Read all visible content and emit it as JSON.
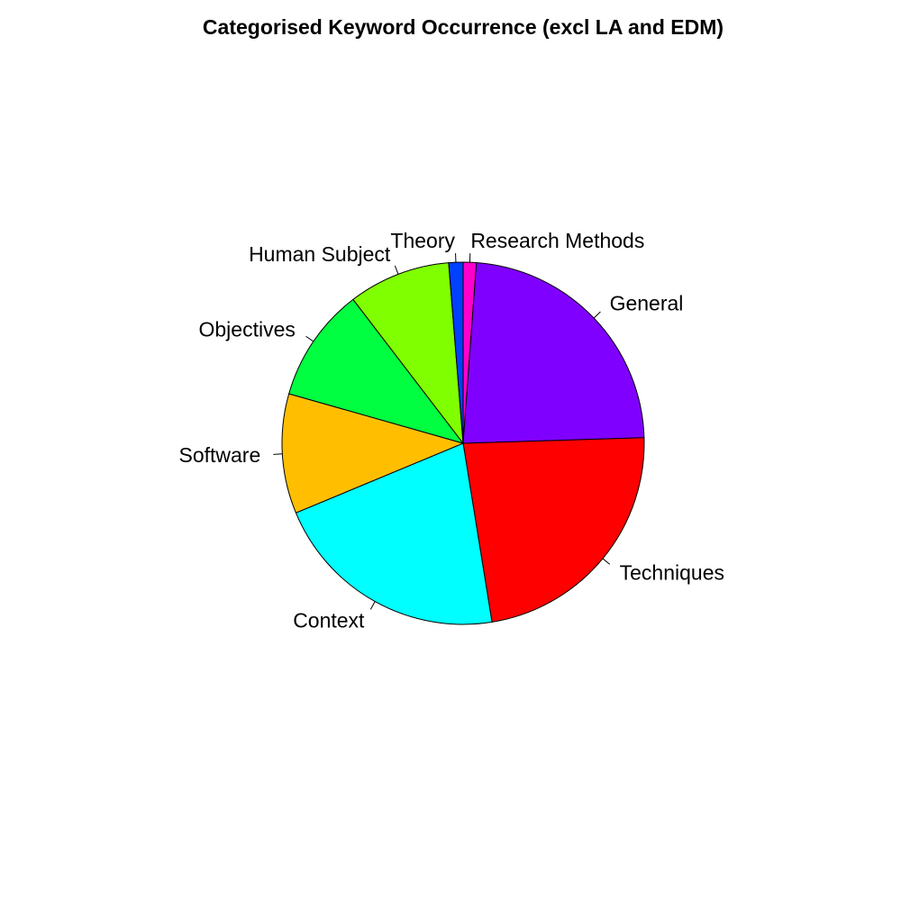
{
  "chart_data": {
    "type": "pie",
    "title": "Categorised Keyword Occurrence (excl LA and EDM)",
    "start_at": "top",
    "direction": "clockwise",
    "categories": [
      "Research Methods",
      "General",
      "Techniques",
      "Context",
      "Software",
      "Objectives",
      "Human Subject",
      "Theory"
    ],
    "values": [
      1.2,
      23.8,
      23.4,
      21.7,
      10.9,
      10.4,
      9.3,
      1.3
    ],
    "unit": "percent",
    "colors": [
      "#FF00CC",
      "#8000FF",
      "#FF0000",
      "#00FFFF",
      "#FFBF00",
      "#00FF40",
      "#80FF00",
      "#0040FF"
    ]
  }
}
